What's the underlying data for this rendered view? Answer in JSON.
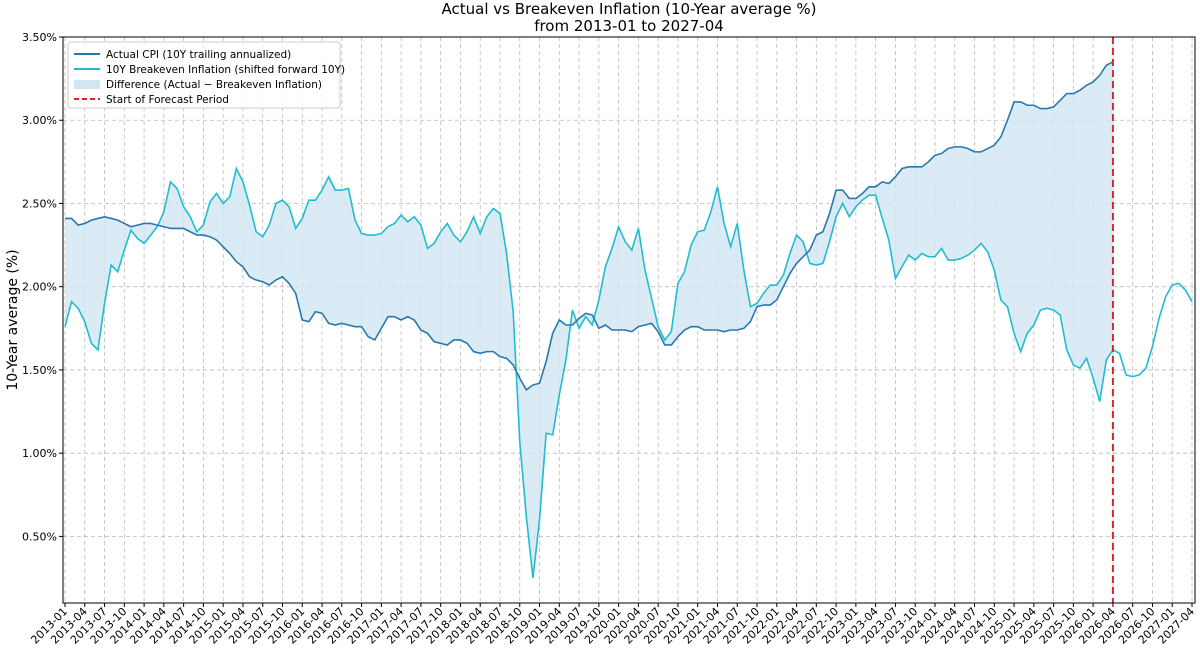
{
  "chart_data": {
    "type": "line",
    "title": "Actual vs Breakeven Inflation (10-Year average %)",
    "subtitle": "from 2013-01 to 2027-04",
    "ylabel": "10-Year average (%)",
    "categories": [
      "2013-01",
      null,
      null,
      "2013-04",
      null,
      null,
      "2013-07",
      null,
      null,
      "2013-10",
      null,
      null,
      "2014-01",
      null,
      null,
      "2014-04",
      null,
      null,
      "2014-07",
      null,
      null,
      "2014-10",
      null,
      null,
      "2015-01",
      null,
      null,
      "2015-04",
      null,
      null,
      "2015-07",
      null,
      null,
      "2015-10",
      null,
      null,
      "2016-01",
      null,
      null,
      "2016-04",
      null,
      null,
      "2016-07",
      null,
      null,
      "2016-10",
      null,
      null,
      "2017-01",
      null,
      null,
      "2017-04",
      null,
      null,
      "2017-07",
      null,
      null,
      "2017-10",
      null,
      null,
      "2018-01",
      null,
      null,
      "2018-04",
      null,
      null,
      "2018-07",
      null,
      null,
      "2018-10",
      null,
      null,
      "2019-01",
      null,
      null,
      "2019-04",
      null,
      null,
      "2019-07",
      null,
      null,
      "2019-10",
      null,
      null,
      "2020-01",
      null,
      null,
      "2020-04",
      null,
      null,
      "2020-07",
      null,
      null,
      "2020-10",
      null,
      null,
      "2021-01",
      null,
      null,
      "2021-04",
      null,
      null,
      "2021-07",
      null,
      null,
      "2021-10",
      null,
      null,
      "2022-01",
      null,
      null,
      "2022-04",
      null,
      null,
      "2022-07",
      null,
      null,
      "2022-10",
      null,
      null,
      "2023-01",
      null,
      null,
      "2023-04",
      null,
      null,
      "2023-07",
      null,
      null,
      "2023-10",
      null,
      null,
      "2024-01",
      null,
      null,
      "2024-04",
      null,
      null,
      "2024-07",
      null,
      null,
      "2024-10",
      null,
      null,
      "2025-01",
      null,
      null,
      "2025-04",
      null,
      null,
      "2025-07",
      null,
      null,
      "2025-10",
      null,
      null,
      "2026-01",
      null,
      null,
      "2026-04",
      null,
      null,
      "2026-07",
      null,
      null,
      "2026-10",
      null,
      null,
      "2027-01",
      null,
      null,
      "2027-04"
    ],
    "series": [
      {
        "name": "Actual CPI (10Y trailing annualized)",
        "color": "#2878b0",
        "values": [
          2.41,
          2.41,
          2.37,
          2.38,
          2.4,
          2.41,
          2.42,
          2.41,
          2.4,
          2.38,
          2.36,
          2.37,
          2.38,
          2.38,
          2.37,
          2.36,
          2.35,
          2.35,
          2.35,
          2.33,
          2.31,
          2.31,
          2.3,
          2.28,
          2.24,
          2.2,
          2.15,
          2.12,
          2.06,
          2.04,
          2.03,
          2.01,
          2.04,
          2.06,
          2.02,
          1.96,
          1.8,
          1.79,
          1.85,
          1.84,
          1.78,
          1.77,
          1.78,
          1.77,
          1.76,
          1.76,
          1.7,
          1.68,
          1.75,
          1.82,
          1.82,
          1.8,
          1.82,
          1.8,
          1.74,
          1.72,
          1.67,
          1.66,
          1.65,
          1.68,
          1.68,
          1.66,
          1.61,
          1.6,
          1.61,
          1.61,
          1.58,
          1.57,
          1.53,
          1.45,
          1.38,
          1.41,
          1.42,
          1.55,
          1.72,
          1.8,
          1.77,
          1.77,
          1.81,
          1.84,
          1.83,
          1.75,
          1.77,
          1.74,
          1.74,
          1.74,
          1.73,
          1.76,
          1.77,
          1.78,
          1.73,
          1.65,
          1.65,
          1.7,
          1.74,
          1.76,
          1.76,
          1.74,
          1.74,
          1.74,
          1.73,
          1.74,
          1.74,
          1.75,
          1.79,
          1.88,
          1.89,
          1.89,
          1.92,
          2.0,
          2.08,
          2.14,
          2.18,
          2.22,
          2.31,
          2.33,
          2.44,
          2.58,
          2.58,
          2.53,
          2.53,
          2.56,
          2.6,
          2.6,
          2.63,
          2.62,
          2.66,
          2.71,
          2.72,
          2.72,
          2.72,
          2.75,
          2.79,
          2.8,
          2.83,
          2.84,
          2.84,
          2.83,
          2.81,
          2.81,
          2.83,
          2.85,
          2.9,
          3.0,
          3.11,
          3.11,
          3.09,
          3.09,
          3.07,
          3.07,
          3.08,
          3.12,
          3.16,
          3.16,
          3.18,
          3.21,
          3.23,
          3.27,
          3.33,
          3.35,
          null,
          null,
          null,
          null,
          null,
          null,
          null,
          null,
          null,
          null,
          null,
          null
        ]
      },
      {
        "name": "10Y Breakeven Inflation (shifted forward 10Y)",
        "color": "#1fbdd0",
        "values": [
          1.76,
          1.91,
          1.87,
          1.79,
          1.66,
          1.62,
          1.9,
          2.13,
          2.09,
          2.22,
          2.34,
          2.29,
          2.26,
          2.31,
          2.36,
          2.45,
          2.63,
          2.59,
          2.48,
          2.42,
          2.33,
          2.37,
          2.51,
          2.56,
          2.5,
          2.54,
          2.71,
          2.63,
          2.49,
          2.33,
          2.3,
          2.37,
          2.5,
          2.52,
          2.48,
          2.35,
          2.41,
          2.52,
          2.52,
          2.58,
          2.66,
          2.58,
          2.58,
          2.59,
          2.4,
          2.32,
          2.31,
          2.31,
          2.32,
          2.36,
          2.38,
          2.43,
          2.39,
          2.42,
          2.37,
          2.23,
          2.26,
          2.33,
          2.38,
          2.31,
          2.27,
          2.33,
          2.42,
          2.32,
          2.42,
          2.47,
          2.44,
          2.2,
          1.85,
          1.07,
          0.62,
          0.25,
          0.6,
          1.12,
          1.11,
          1.35,
          1.56,
          1.86,
          1.75,
          1.82,
          1.77,
          1.92,
          2.12,
          2.23,
          2.36,
          2.27,
          2.22,
          2.35,
          2.1,
          1.93,
          1.76,
          1.68,
          1.73,
          2.02,
          2.09,
          2.25,
          2.33,
          2.34,
          2.45,
          2.6,
          2.38,
          2.24,
          2.38,
          2.1,
          1.88,
          1.9,
          1.96,
          2.01,
          2.01,
          2.07,
          2.2,
          2.31,
          2.27,
          2.14,
          2.13,
          2.14,
          2.27,
          2.42,
          2.5,
          2.42,
          2.48,
          2.52,
          2.55,
          2.55,
          2.41,
          2.28,
          2.05,
          2.12,
          2.19,
          2.16,
          2.2,
          2.18,
          2.18,
          2.23,
          2.16,
          2.16,
          2.17,
          2.19,
          2.22,
          2.26,
          2.21,
          2.1,
          1.92,
          1.88,
          1.72,
          1.61,
          1.72,
          1.77,
          1.86,
          1.87,
          1.86,
          1.83,
          1.62,
          1.53,
          1.51,
          1.57,
          1.45,
          1.31,
          1.56,
          1.62,
          1.6,
          1.47,
          1.46,
          1.47,
          1.51,
          1.64,
          1.81,
          1.94,
          2.01,
          2.02,
          1.98,
          1.91
        ]
      }
    ],
    "fill": {
      "name": "Difference (Actual − Breakeven Inflation)",
      "color": "#d2e6f2"
    },
    "forecast_line": {
      "name": "Start of Forecast Period",
      "at": "2026-04",
      "color": "#d62728"
    },
    "ylim": [
      0.1,
      3.5
    ],
    "yticks": [
      {
        "value": 0.5,
        "label": "0.50%"
      },
      {
        "value": 1.0,
        "label": "1.00%"
      },
      {
        "value": 1.5,
        "label": "1.50%"
      },
      {
        "value": 2.0,
        "label": "2.00%"
      },
      {
        "value": 2.5,
        "label": "2.50%"
      },
      {
        "value": 3.0,
        "label": "3.00%"
      },
      {
        "value": 3.5,
        "label": "3.50%"
      }
    ],
    "grid": true,
    "legend": "upper left"
  }
}
